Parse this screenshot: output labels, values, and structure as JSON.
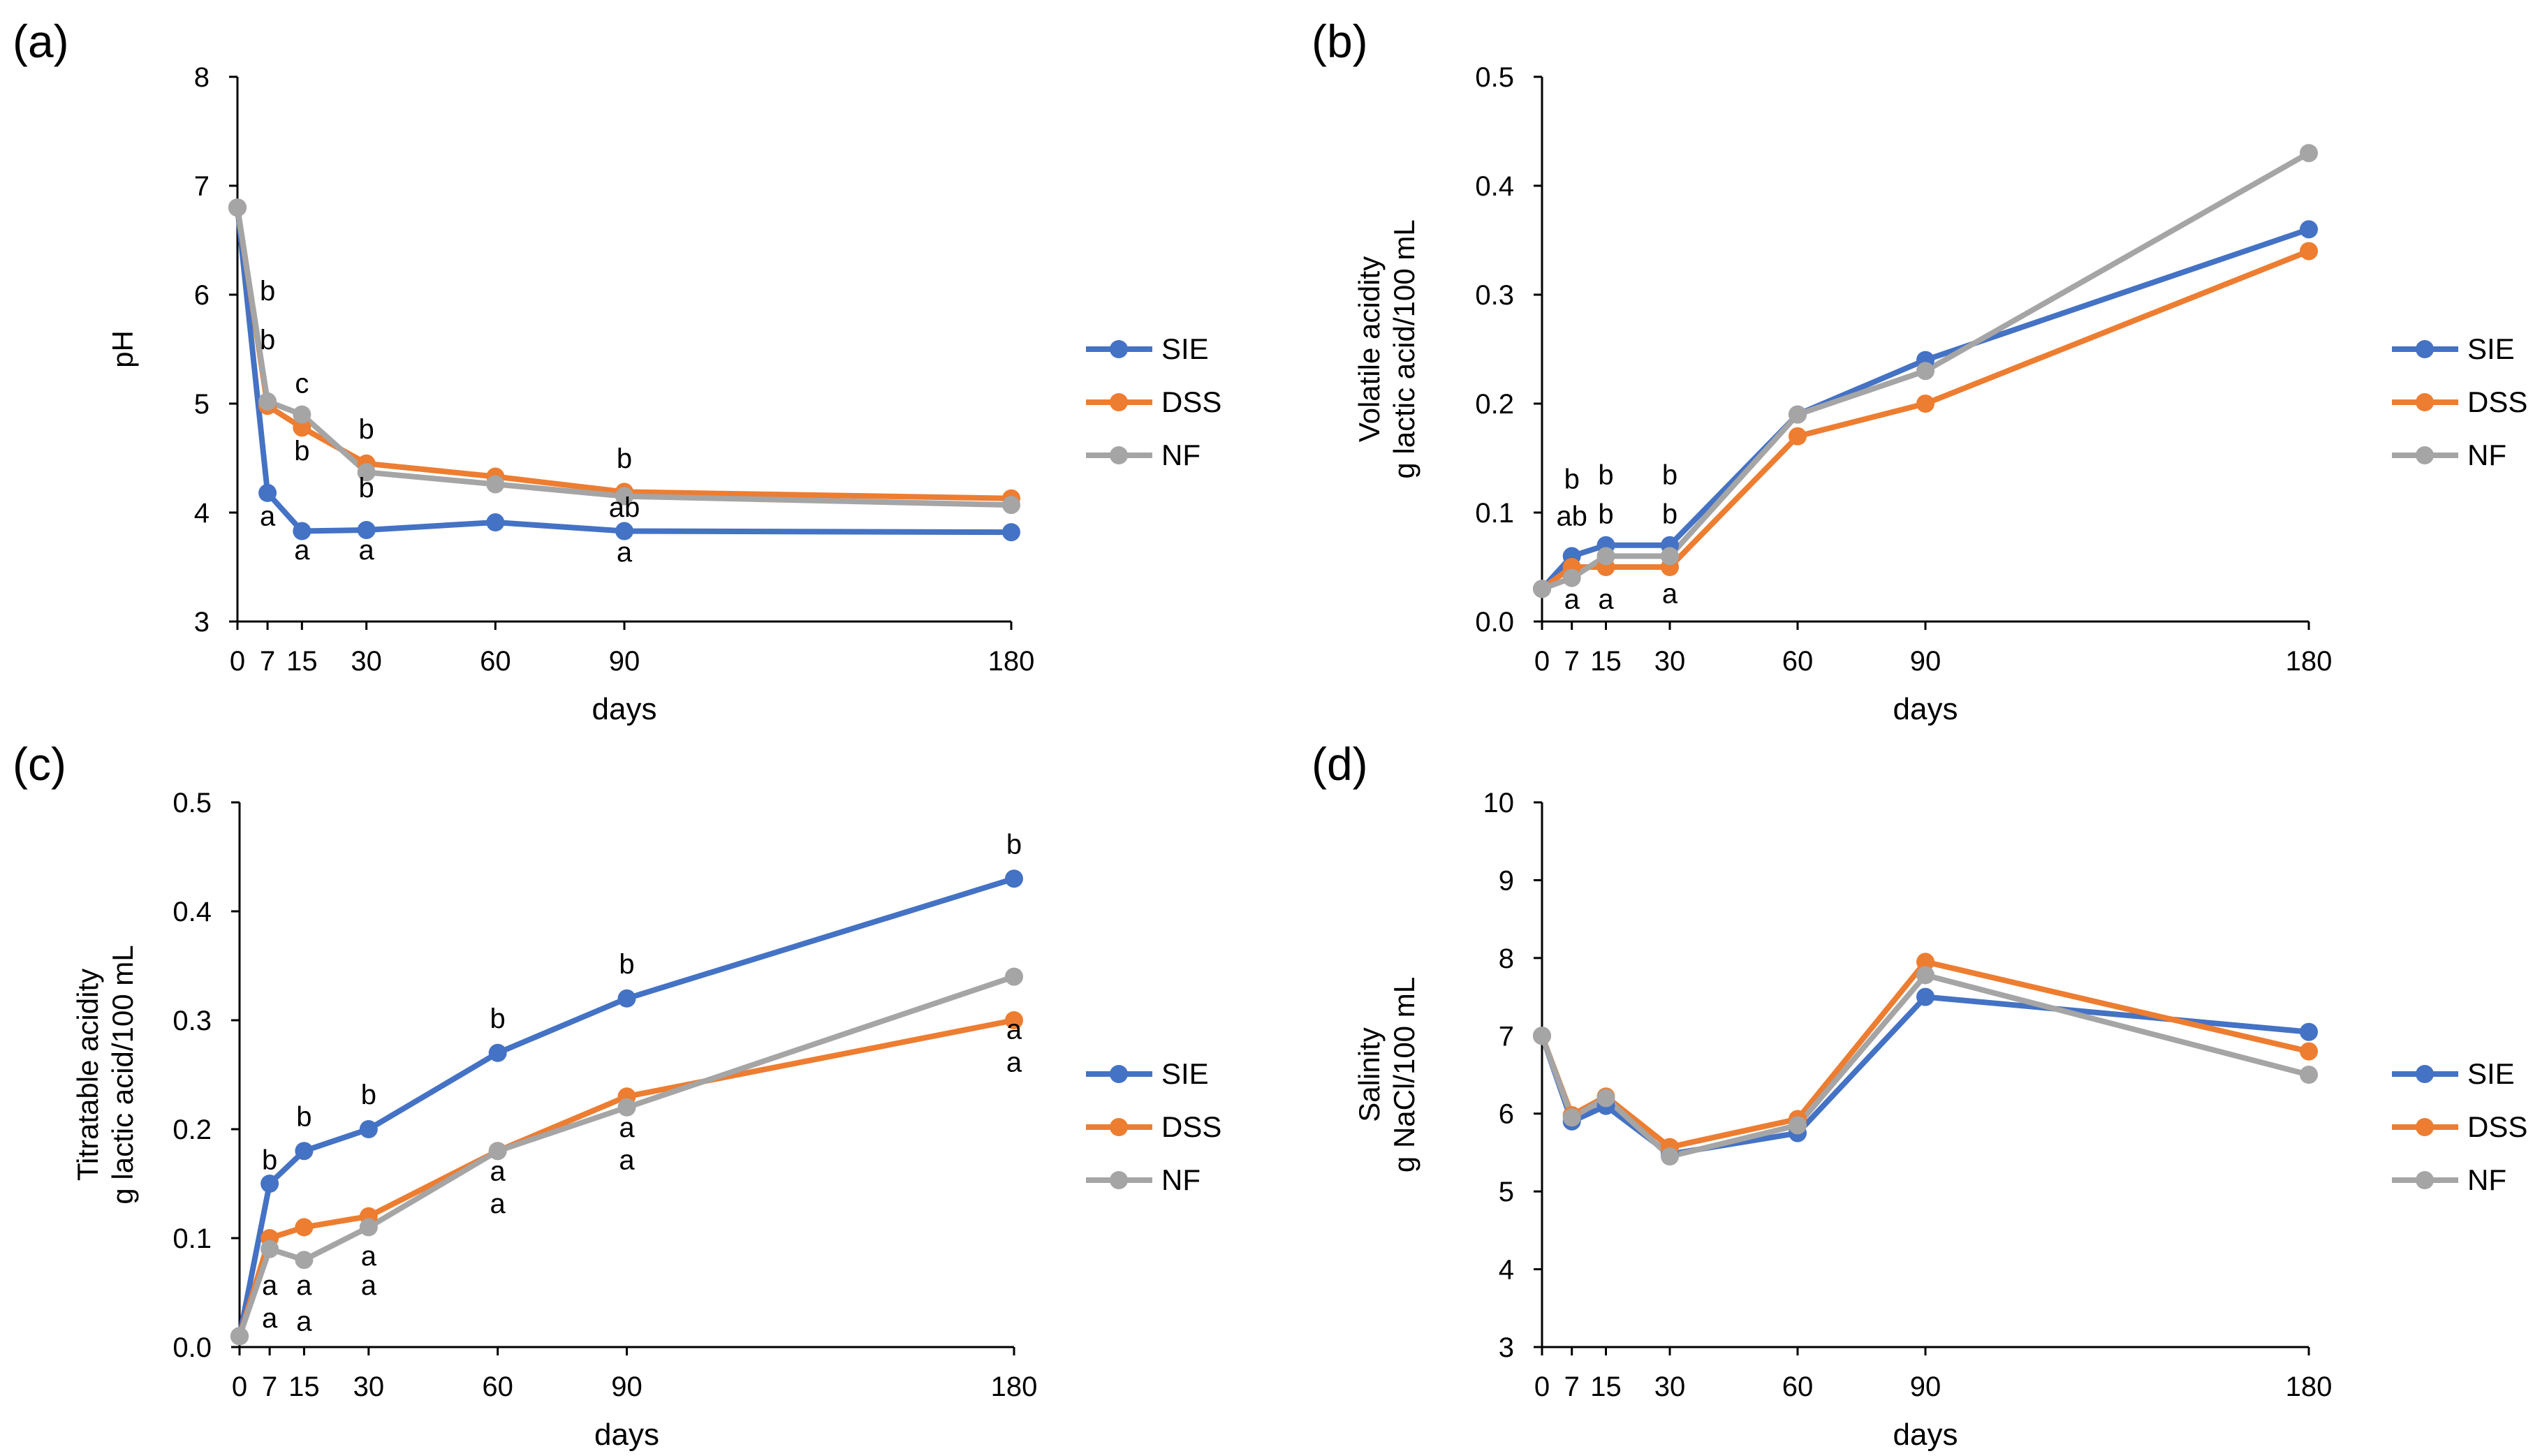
{
  "figure": {
    "legend_entries": [
      "SIE",
      "DSS",
      "NF"
    ],
    "colors": {
      "SIE": "#4472C4",
      "DSS": "#ED7D31",
      "NF": "#A5A5A5",
      "axis": "#000000"
    }
  },
  "chart_data": [
    {
      "id": "a",
      "panel_label": "(a)",
      "type": "line",
      "title": "",
      "xlabel": "days",
      "ylabel": [
        "pH"
      ],
      "x": [
        0,
        7,
        15,
        30,
        60,
        90,
        180
      ],
      "xticks": [
        0,
        7,
        15,
        30,
        60,
        90,
        180
      ],
      "ylim": [
        3,
        8
      ],
      "yticks": [
        "3",
        "4",
        "5",
        "6",
        "7",
        "8"
      ],
      "legend_position": "right",
      "series": [
        {
          "name": "SIE",
          "color": "#4472C4",
          "values": [
            6.8,
            4.18,
            3.83,
            3.84,
            3.91,
            3.83,
            3.82
          ]
        },
        {
          "name": "DSS",
          "color": "#ED7D31",
          "values": [
            6.8,
            4.98,
            4.78,
            4.45,
            4.33,
            4.19,
            4.13
          ]
        },
        {
          "name": "NF",
          "color": "#A5A5A5",
          "values": [
            6.8,
            5.02,
            4.9,
            4.37,
            4.26,
            4.15,
            4.07
          ]
        }
      ],
      "annotations": [
        {
          "x": 7,
          "y": 5.95,
          "text": "b"
        },
        {
          "x": 7,
          "y": 5.5,
          "text": "b"
        },
        {
          "x": 7,
          "y": 3.88,
          "text": "a"
        },
        {
          "x": 15,
          "y": 5.1,
          "text": "c"
        },
        {
          "x": 15,
          "y": 4.48,
          "text": "b"
        },
        {
          "x": 15,
          "y": 3.57,
          "text": "a"
        },
        {
          "x": 30,
          "y": 4.68,
          "text": "b"
        },
        {
          "x": 30,
          "y": 4.14,
          "text": "b"
        },
        {
          "x": 30,
          "y": 3.57,
          "text": "a"
        },
        {
          "x": 90,
          "y": 4.41,
          "text": "b"
        },
        {
          "x": 90,
          "y": 3.96,
          "text": "ab"
        },
        {
          "x": 90,
          "y": 3.55,
          "text": "a"
        }
      ]
    },
    {
      "id": "b",
      "panel_label": "(b)",
      "type": "line",
      "title": "",
      "xlabel": "days",
      "ylabel": [
        "Volatile acidity",
        "g lactic acid/100 mL"
      ],
      "x": [
        0,
        7,
        15,
        30,
        60,
        90,
        180
      ],
      "xticks": [
        0,
        7,
        15,
        30,
        60,
        90,
        180
      ],
      "ylim": [
        0,
        0.5
      ],
      "yticks": [
        "0.0",
        "0.1",
        "0.2",
        "0.3",
        "0.4",
        "0.5"
      ],
      "legend_position": "right",
      "series": [
        {
          "name": "SIE",
          "color": "#4472C4",
          "values": [
            0.03,
            0.06,
            0.07,
            0.07,
            0.19,
            0.24,
            0.36
          ]
        },
        {
          "name": "DSS",
          "color": "#ED7D31",
          "values": [
            0.03,
            0.05,
            0.05,
            0.05,
            0.17,
            0.2,
            0.34
          ]
        },
        {
          "name": "NF",
          "color": "#A5A5A5",
          "values": [
            0.03,
            0.04,
            0.06,
            0.06,
            0.19,
            0.23,
            0.43
          ]
        }
      ],
      "annotations": [
        {
          "x": 7,
          "y": 0.122,
          "text": "b"
        },
        {
          "x": 7,
          "y": 0.088,
          "text": "ab"
        },
        {
          "x": 7,
          "y": 0.012,
          "text": "a"
        },
        {
          "x": 15,
          "y": 0.126,
          "text": "b"
        },
        {
          "x": 15,
          "y": 0.09,
          "text": "b"
        },
        {
          "x": 15,
          "y": 0.012,
          "text": "a"
        },
        {
          "x": 30,
          "y": 0.126,
          "text": "b"
        },
        {
          "x": 30,
          "y": 0.09,
          "text": "b"
        },
        {
          "x": 30,
          "y": 0.017,
          "text": "a"
        }
      ]
    },
    {
      "id": "c",
      "panel_label": "(c)",
      "type": "line",
      "title": "",
      "xlabel": "days",
      "ylabel": [
        "Titratable acidity",
        "g lactic acid/100 mL"
      ],
      "x": [
        0,
        7,
        15,
        30,
        60,
        90,
        180
      ],
      "xticks": [
        0,
        7,
        15,
        30,
        60,
        90,
        180
      ],
      "ylim": [
        0,
        0.5
      ],
      "yticks": [
        "0.0",
        "0.1",
        "0.2",
        "0.3",
        "0.4",
        "0.5"
      ],
      "legend_position": "right",
      "series": [
        {
          "name": "SIE",
          "color": "#4472C4",
          "values": [
            0.01,
            0.15,
            0.18,
            0.2,
            0.27,
            0.32,
            0.43
          ]
        },
        {
          "name": "DSS",
          "color": "#ED7D31",
          "values": [
            0.01,
            0.1,
            0.11,
            0.12,
            0.18,
            0.23,
            0.3
          ]
        },
        {
          "name": "NF",
          "color": "#A5A5A5",
          "values": [
            0.01,
            0.09,
            0.08,
            0.11,
            0.18,
            0.22,
            0.34
          ]
        }
      ],
      "annotations": [
        {
          "x": 7,
          "y": 0.163,
          "text": "b"
        },
        {
          "x": 7,
          "y": 0.048,
          "text": "a"
        },
        {
          "x": 7,
          "y": 0.018,
          "text": "a"
        },
        {
          "x": 15,
          "y": 0.203,
          "text": "b"
        },
        {
          "x": 15,
          "y": 0.048,
          "text": "a"
        },
        {
          "x": 15,
          "y": 0.015,
          "text": "a"
        },
        {
          "x": 30,
          "y": 0.223,
          "text": "b"
        },
        {
          "x": 30,
          "y": 0.075,
          "text": "a"
        },
        {
          "x": 30,
          "y": 0.048,
          "text": "a"
        },
        {
          "x": 60,
          "y": 0.293,
          "text": "b"
        },
        {
          "x": 60,
          "y": 0.153,
          "text": "a"
        },
        {
          "x": 60,
          "y": 0.123,
          "text": "a"
        },
        {
          "x": 90,
          "y": 0.343,
          "text": "b"
        },
        {
          "x": 90,
          "y": 0.193,
          "text": "a"
        },
        {
          "x": 90,
          "y": 0.163,
          "text": "a"
        },
        {
          "x": 180,
          "y": 0.453,
          "text": "b"
        },
        {
          "x": 180,
          "y": 0.283,
          "text": "a"
        },
        {
          "x": 180,
          "y": 0.253,
          "text": "a"
        }
      ]
    },
    {
      "id": "d",
      "panel_label": "(d)",
      "type": "line",
      "title": "",
      "xlabel": "days",
      "ylabel": [
        "Salinity",
        "g NaCl/100 mL"
      ],
      "x": [
        0,
        7,
        15,
        30,
        60,
        90,
        180
      ],
      "xticks": [
        0,
        7,
        15,
        30,
        60,
        90,
        180
      ],
      "ylim": [
        3,
        10
      ],
      "yticks": [
        "3",
        "4",
        "5",
        "6",
        "7",
        "8",
        "9",
        "10"
      ],
      "legend_position": "right",
      "series": [
        {
          "name": "SIE",
          "color": "#4472C4",
          "values": [
            7.0,
            5.9,
            6.1,
            5.48,
            5.75,
            7.5,
            7.05
          ]
        },
        {
          "name": "DSS",
          "color": "#ED7D31",
          "values": [
            7.0,
            5.98,
            6.22,
            5.57,
            5.93,
            7.95,
            6.8
          ]
        },
        {
          "name": "NF",
          "color": "#A5A5A5",
          "values": [
            7.0,
            5.95,
            6.2,
            5.45,
            5.85,
            7.78,
            6.5
          ]
        }
      ],
      "annotations": []
    }
  ]
}
